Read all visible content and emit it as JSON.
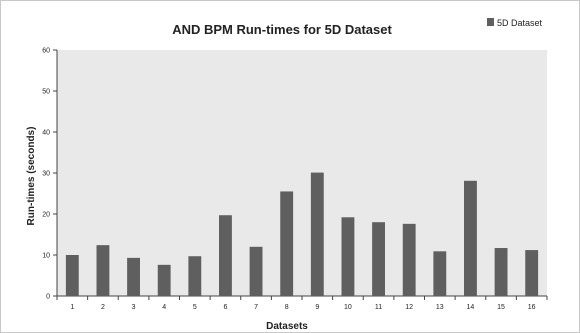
{
  "chart_data": {
    "type": "bar",
    "title": "AND BPM Run-times for 5D Dataset",
    "xlabel": "Datasets",
    "ylabel": "Run-times (seconds)",
    "categories": [
      "1",
      "2",
      "3",
      "4",
      "5",
      "6",
      "7",
      "8",
      "9",
      "10",
      "11",
      "12",
      "13",
      "14",
      "15",
      "16"
    ],
    "series": [
      {
        "name": "5D Dataset",
        "values": [
          10,
          12.4,
          9.3,
          7.6,
          9.7,
          19.7,
          12,
          25.5,
          30.1,
          19.2,
          18,
          17.6,
          10.9,
          28.1,
          11.7,
          11.2
        ],
        "color": "#5f5f5f"
      }
    ],
    "ylim": [
      0,
      60
    ],
    "yticks": [
      0,
      10,
      20,
      30,
      40,
      50,
      60
    ],
    "grid": false,
    "plot_background": "#e9e9e9",
    "legend_position": "top-right"
  }
}
